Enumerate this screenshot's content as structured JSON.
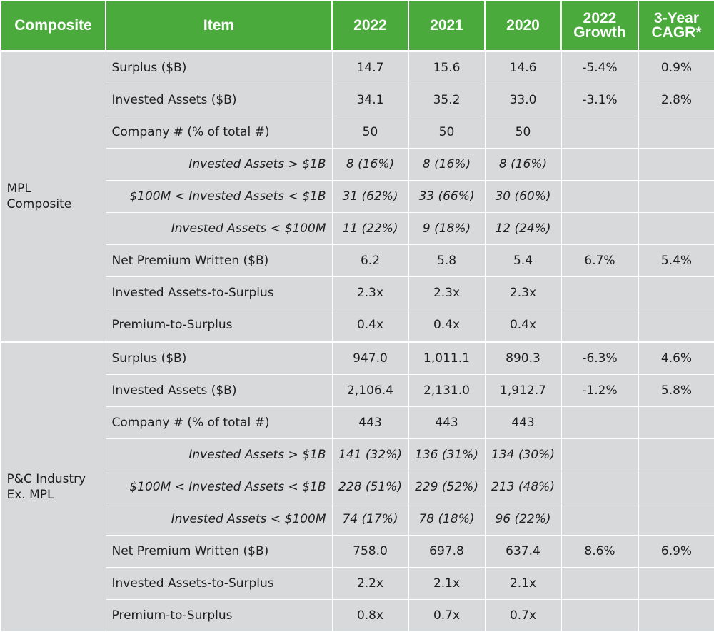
{
  "headers": {
    "composite": "Composite",
    "item": "Item",
    "y2022": "2022",
    "y2021": "2021",
    "y2020": "2020",
    "growth": "2022\nGrowth",
    "cagr": "3-Year\nCAGR*"
  },
  "groups": [
    {
      "name": "MPL\nComposite",
      "rows": [
        {
          "item": "Surplus ($B)",
          "v2022": "14.7",
          "v2021": "15.6",
          "v2020": "14.6",
          "growth": "-5.4%",
          "cagr": "0.9%"
        },
        {
          "item": "Invested Assets ($B)",
          "v2022": "34.1",
          "v2021": "35.2",
          "v2020": "33.0",
          "growth": "-3.1%",
          "cagr": "2.8%"
        },
        {
          "item": "Company # (% of total #)",
          "v2022": "50",
          "v2021": "50",
          "v2020": "50",
          "growth": "",
          "cagr": ""
        },
        {
          "item": "Invested Assets > $1B",
          "v2022": "8 (16%)",
          "v2021": "8 (16%)",
          "v2020": "8 (16%)",
          "growth": "",
          "cagr": ""
        },
        {
          "item": "$100M < Invested Assets < $1B",
          "v2022": "31 (62%)",
          "v2021": "33 (66%)",
          "v2020": "30 (60%)",
          "growth": "",
          "cagr": ""
        },
        {
          "item": "Invested Assets < $100M",
          "v2022": "11 (22%)",
          "v2021": "9 (18%)",
          "v2020": "12 (24%)",
          "growth": "",
          "cagr": ""
        },
        {
          "item": "Net Premium Written ($B)",
          "v2022": "6.2",
          "v2021": "5.8",
          "v2020": "5.4",
          "growth": "6.7%",
          "cagr": "5.4%"
        },
        {
          "item": "Invested Assets-to-Surplus",
          "v2022": "2.3x",
          "v2021": "2.3x",
          "v2020": "2.3x",
          "growth": "",
          "cagr": ""
        },
        {
          "item": "Premium-to-Surplus",
          "v2022": "0.4x",
          "v2021": "0.4x",
          "v2020": "0.4x",
          "growth": "",
          "cagr": ""
        }
      ]
    },
    {
      "name": "P&C Industry\nEx. MPL",
      "rows": [
        {
          "item": "Surplus ($B)",
          "v2022": "947.0",
          "v2021": "1,011.1",
          "v2020": "890.3",
          "growth": "-6.3%",
          "cagr": "4.6%"
        },
        {
          "item": "Invested Assets ($B)",
          "v2022": "2,106.4",
          "v2021": "2,131.0",
          "v2020": "1,912.7",
          "growth": "-1.2%",
          "cagr": "5.8%"
        },
        {
          "item": "Company # (% of total #)",
          "v2022": "443",
          "v2021": "443",
          "v2020": "443",
          "growth": "",
          "cagr": ""
        },
        {
          "item": "Invested Assets > $1B",
          "v2022": "141 (32%)",
          "v2021": "136 (31%)",
          "v2020": "134 (30%)",
          "growth": "",
          "cagr": ""
        },
        {
          "item": "$100M < Invested Assets < $1B",
          "v2022": "228 (51%)",
          "v2021": "229 (52%)",
          "v2020": "213 (48%)",
          "growth": "",
          "cagr": ""
        },
        {
          "item": "Invested Assets < $100M",
          "v2022": "74 (17%)",
          "v2021": "78 (18%)",
          "v2020": "96 (22%)",
          "growth": "",
          "cagr": ""
        },
        {
          "item": "Net Premium Written ($B)",
          "v2022": "758.0",
          "v2021": "697.8",
          "v2020": "637.4",
          "growth": "8.6%",
          "cagr": "6.9%"
        },
        {
          "item": "Invested Assets-to-Surplus",
          "v2022": "2.2x",
          "v2021": "2.1x",
          "v2020": "2.1x",
          "growth": "",
          "cagr": ""
        },
        {
          "item": "Premium-to-Surplus",
          "v2022": "0.8x",
          "v2021": "0.7x",
          "v2020": "0.7x",
          "growth": "",
          "cagr": ""
        }
      ]
    }
  ],
  "colors": {
    "header_bg": "#4aab3c",
    "header_text": "#ffffff",
    "cell_bg": "#d8d9da",
    "cell_text": "#1e1e1e"
  }
}
